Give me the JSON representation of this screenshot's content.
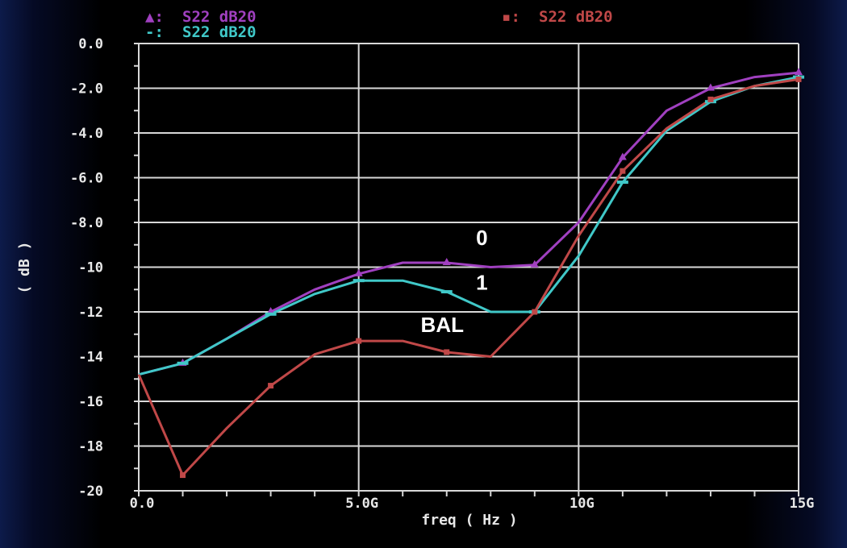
{
  "chart_data": {
    "type": "line",
    "xlabel": "freq ( Hz )",
    "ylabel": "( dB )",
    "xlim": [
      0,
      15
    ],
    "ylim": [
      -20,
      0
    ],
    "grid": true,
    "xticks": [
      {
        "value": 0,
        "label": "0.0"
      },
      {
        "value": 5,
        "label": "5.0G"
      },
      {
        "value": 10,
        "label": "10G"
      },
      {
        "value": 15,
        "label": "15G"
      }
    ],
    "yticks": [
      {
        "value": 0,
        "label": "0.0"
      },
      {
        "value": -2,
        "label": "-2.0"
      },
      {
        "value": -4,
        "label": "-4.0"
      },
      {
        "value": -6,
        "label": "-6.0"
      },
      {
        "value": -8,
        "label": "-8.0"
      },
      {
        "value": -10,
        "label": "-10"
      },
      {
        "value": -12,
        "label": "-12"
      },
      {
        "value": -14,
        "label": "-14"
      },
      {
        "value": -16,
        "label": "-16"
      },
      {
        "value": -18,
        "label": "-18"
      },
      {
        "value": -20,
        "label": "-20"
      }
    ],
    "legend": [
      {
        "symbol": "▲:",
        "label": "S22 dB20",
        "color": "#a040c0"
      },
      {
        "symbol": "-:",
        "label": "S22 dB20",
        "color": "#40c8c8"
      },
      {
        "symbol": "▪:",
        "label": "S22 dB20",
        "color": "#c04848"
      }
    ],
    "series": [
      {
        "color": "#a040c0",
        "marker": "triangle",
        "x": [
          0,
          1,
          2,
          3,
          4,
          5,
          6,
          7,
          8,
          9,
          10,
          11,
          12,
          13,
          14,
          15
        ],
        "y": [
          -14.8,
          -14.3,
          -13.2,
          -12.0,
          -11.0,
          -10.3,
          -9.8,
          -9.8,
          -10.0,
          -9.9,
          -8.0,
          -5.1,
          -3.0,
          -2.0,
          -1.5,
          -1.3
        ]
      },
      {
        "color": "#40c8c8",
        "marker": "dash",
        "x": [
          0,
          1,
          2,
          3,
          4,
          5,
          6,
          7,
          8,
          9,
          10,
          11,
          12,
          13,
          14,
          15
        ],
        "y": [
          -14.8,
          -14.3,
          -13.2,
          -12.1,
          -11.2,
          -10.6,
          -10.6,
          -11.1,
          -12.0,
          -12.0,
          -9.5,
          -6.2,
          -3.9,
          -2.6,
          -1.9,
          -1.5
        ]
      },
      {
        "color": "#c04848",
        "marker": "square",
        "x": [
          0,
          1,
          2,
          3,
          4,
          5,
          6,
          7,
          8,
          9,
          10,
          11,
          12,
          13,
          14,
          15
        ],
        "y": [
          -14.8,
          -19.3,
          -17.2,
          -15.3,
          -13.9,
          -13.3,
          -13.3,
          -13.8,
          -14.0,
          -12.0,
          -8.6,
          -5.7,
          -3.8,
          -2.5,
          -1.9,
          -1.6
        ]
      }
    ],
    "marker_x": [
      1,
      3,
      5,
      7,
      9,
      11,
      13,
      15
    ],
    "annotations": [
      {
        "text": "0",
        "x": 7.8,
        "y": -9.0
      },
      {
        "text": "1",
        "x": 7.8,
        "y": -11.0
      },
      {
        "text": "BAL",
        "x": 6.9,
        "y": -12.9
      }
    ]
  }
}
